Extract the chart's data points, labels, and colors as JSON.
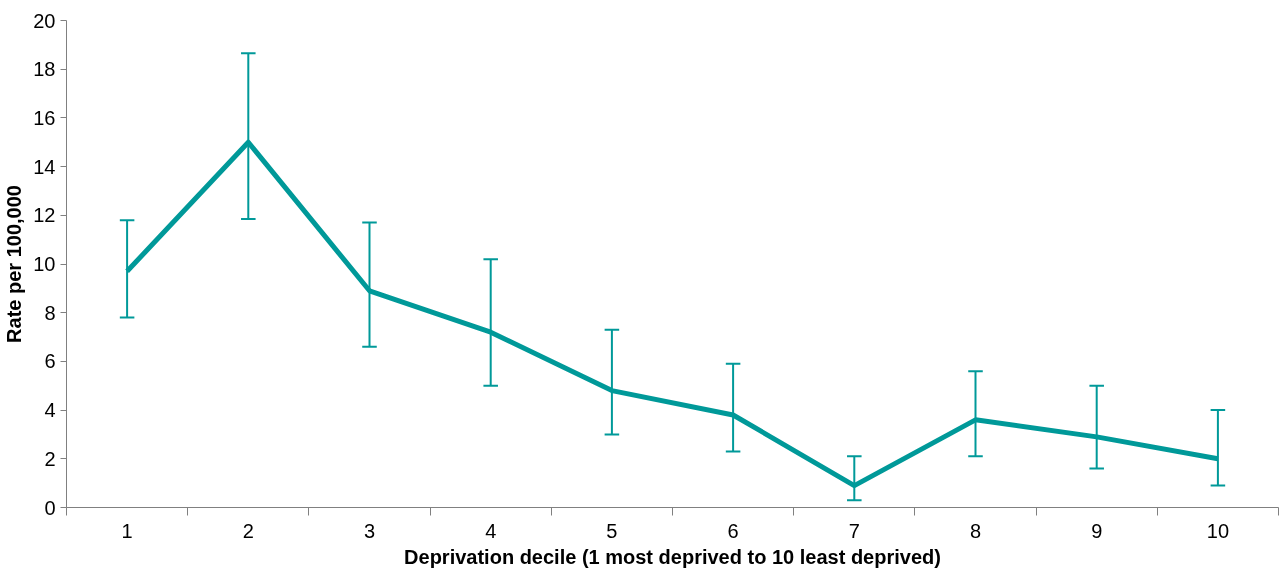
{
  "chart_data": {
    "type": "line",
    "xlabel": "Deprivation decile (1 most deprived to 10 least deprived)",
    "ylabel": "Rate per 100,000",
    "categories": [
      "1",
      "2",
      "3",
      "4",
      "5",
      "6",
      "7",
      "8",
      "9",
      "10"
    ],
    "series": [
      {
        "color": "#009999",
        "values": [
          9.7,
          15.0,
          8.9,
          7.2,
          4.8,
          3.8,
          0.9,
          3.6,
          2.9,
          2.0
        ],
        "errors": [
          [
            7.8,
            11.8
          ],
          [
            11.85,
            18.65
          ],
          [
            6.6,
            11.7
          ],
          [
            5.0,
            10.2
          ],
          [
            3.0,
            7.3
          ],
          [
            2.3,
            5.9
          ],
          [
            0.3,
            2.1
          ],
          [
            2.1,
            5.6
          ],
          [
            1.6,
            5.0
          ],
          [
            0.9,
            4.0
          ]
        ]
      }
    ],
    "ylim": [
      0,
      20
    ],
    "yticks": [
      0,
      2,
      4,
      6,
      8,
      10,
      12,
      14,
      16,
      18,
      20
    ],
    "grid": false,
    "marker": "none",
    "line_style": "solid"
  }
}
